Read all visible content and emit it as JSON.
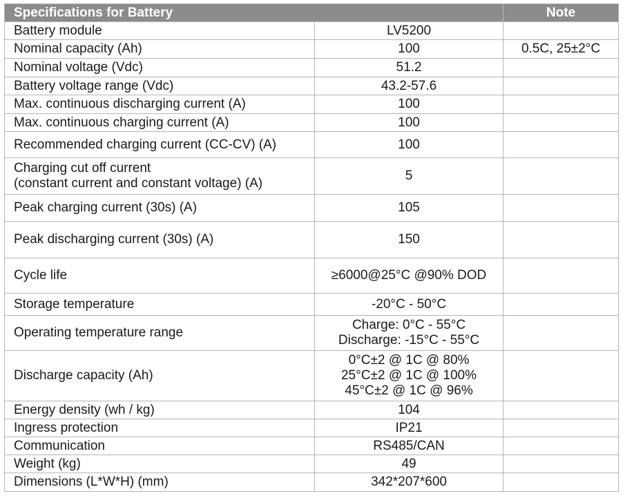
{
  "header": {
    "title": "Specifications for Battery",
    "note": "Note"
  },
  "colors": {
    "header_bg": "#8c8c8c",
    "header_text": "#ffffff",
    "border": "#b5b5b5"
  },
  "rows": [
    {
      "label": "Battery module",
      "value": "LV5200",
      "note": ""
    },
    {
      "label": "Nominal capacity (Ah)",
      "value": "100",
      "note": "0.5C, 25±2°C"
    },
    {
      "label": "Nominal voltage (Vdc)",
      "value": "51.2",
      "note": ""
    },
    {
      "label": "Battery voltage range (Vdc)",
      "value": "43.2-57.6",
      "note": ""
    },
    {
      "label": "Max. continuous discharging current (A)",
      "value": "100",
      "note": ""
    },
    {
      "label": "Max. continuous charging current (A)",
      "value": "100",
      "note": ""
    },
    {
      "label": "Recommended charging current (CC-CV) (A)",
      "value": "100",
      "note": ""
    },
    {
      "label": "Charging cut off current\n(constant current and constant voltage) (A)",
      "value": "5",
      "note": ""
    },
    {
      "label": "Peak charging current (30s) (A)",
      "value": "105",
      "note": ""
    },
    {
      "label": "Peak discharging current (30s) (A)",
      "value": "150",
      "note": ""
    },
    {
      "label": "Cycle life",
      "value": "≥6000@25°C @90% DOD",
      "note": ""
    },
    {
      "label": "Storage temperature",
      "value": "-20°C - 50°C",
      "note": ""
    },
    {
      "label": "Operating temperature range",
      "value": "Charge: 0°C - 55°C\nDischarge: -15°C - 55°C",
      "note": ""
    },
    {
      "label": "Discharge capacity (Ah)",
      "value": "0°C±2 @ 1C @ 80%\n25°C±2 @ 1C @ 100%\n45°C±2 @ 1C @ 96%",
      "note": ""
    },
    {
      "label": "Energy density (wh / kg)",
      "value": "104",
      "note": ""
    },
    {
      "label": "Ingress protection",
      "value": "IP21",
      "note": ""
    },
    {
      "label": "Communication",
      "value": "RS485/CAN",
      "note": ""
    },
    {
      "label": "Weight (kg)",
      "value": "49",
      "note": ""
    },
    {
      "label": "Dimensions (L*W*H) (mm)",
      "value": "342*207*600",
      "note": ""
    }
  ]
}
